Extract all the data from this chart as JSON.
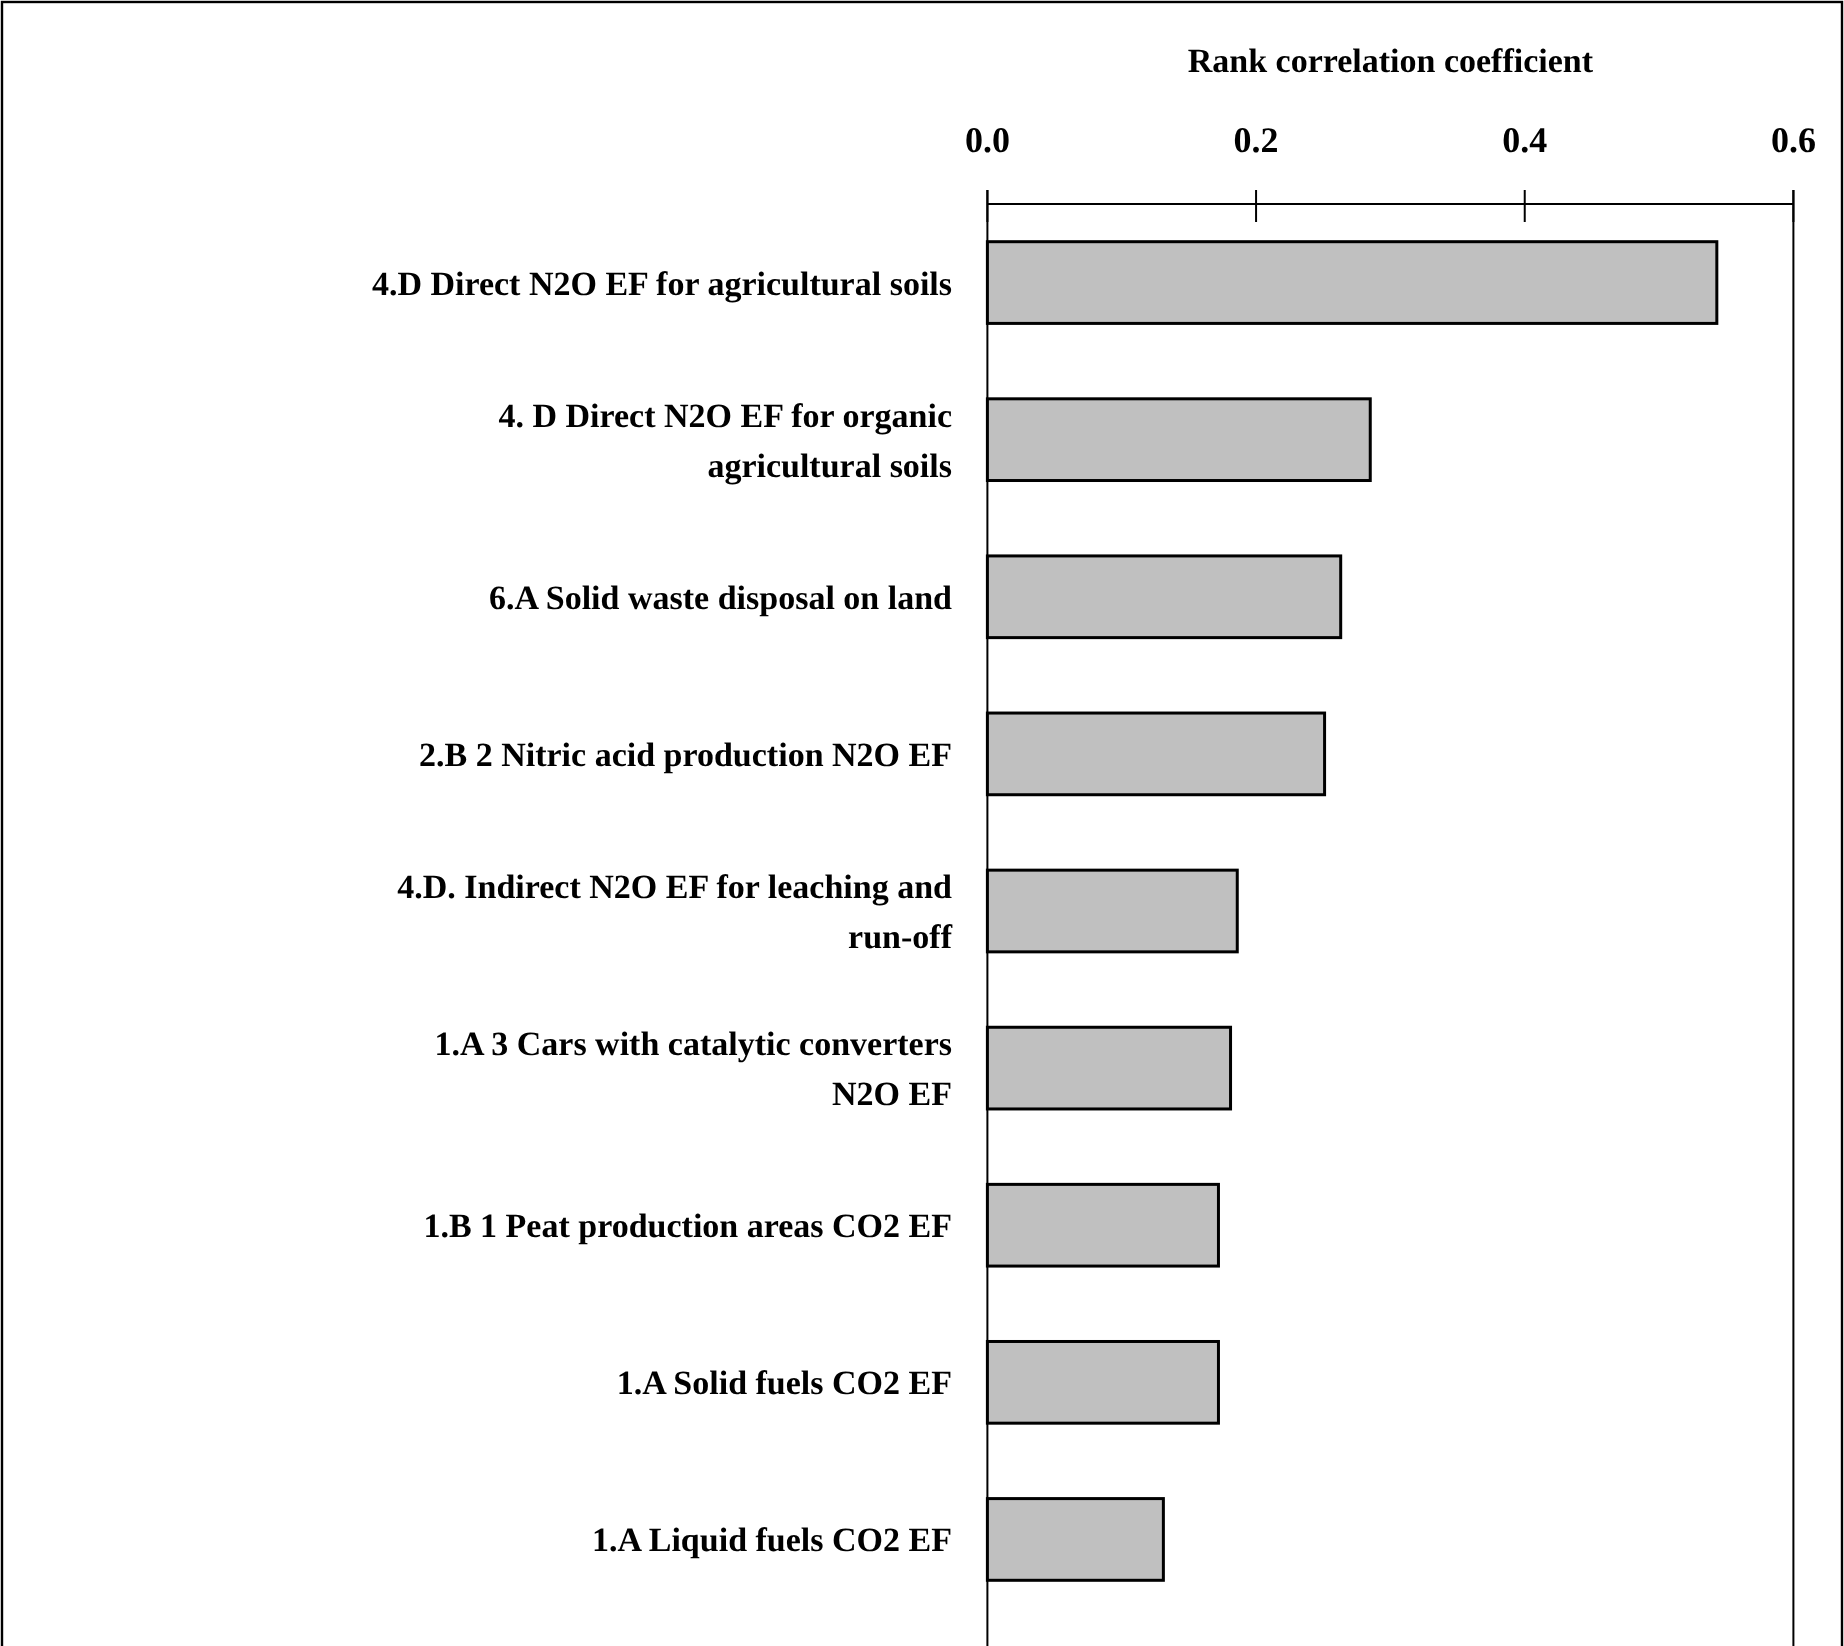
{
  "chart_data": {
    "type": "bar",
    "orientation": "horizontal",
    "xlabel": "Rank correlation coefficient",
    "categories": [
      "4.D Direct N2O EF for agricultural soils",
      "4. D Direct N2O EF for organic\nagricultural soils",
      "6.A Solid waste disposal on land",
      "2.B 2 Nitric acid production N2O EF",
      "4.D. Indirect N2O EF for leaching and\nrun-off",
      "1.A 3 Cars with catalytic converters\nN2O EF",
      "1.B 1 Peat production areas CO2 EF",
      "1.A Solid fuels CO2 EF",
      "1.A Liquid fuels CO2 EF"
    ],
    "values": [
      0.543,
      0.285,
      0.263,
      0.251,
      0.186,
      0.181,
      0.172,
      0.172,
      0.131
    ],
    "color": "#c0c0c0",
    "xlim": [
      0,
      0.6
    ],
    "xticks": [
      {
        "value": 0,
        "label": "0.0"
      },
      0.2,
      0.4,
      0.6
    ],
    "grid": false
  }
}
